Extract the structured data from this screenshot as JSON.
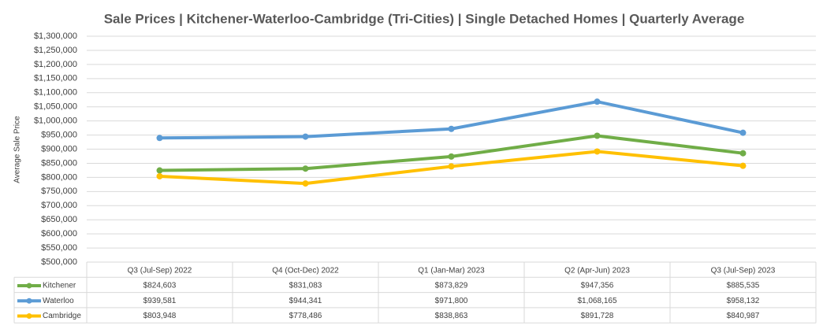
{
  "chart_data": {
    "type": "line",
    "title": "Sale Prices | Kitchener-Waterloo-Cambridge (Tri-Cities) | Single Detached Homes | Quarterly Average",
    "y_label": "Average Sale Price",
    "categories": [
      "Q3 (Jul-Sep) 2022",
      "Q4 (Oct-Dec) 2022",
      "Q1 (Jan-Mar) 2023",
      "Q2 (Apr-Jun) 2023",
      "Q3 (Jul-Sep) 2023"
    ],
    "series": [
      {
        "name": "Kitchener",
        "color": "#70ad47",
        "values": [
          824603,
          831083,
          873829,
          947356,
          885535
        ],
        "value_labels": [
          "$824,603",
          "$831,083",
          "$873,829",
          "$947,356",
          "$885,535"
        ]
      },
      {
        "name": "Waterloo",
        "color": "#5b9bd5",
        "values": [
          939581,
          944341,
          971800,
          1068165,
          958132
        ],
        "value_labels": [
          "$939,581",
          "$944,341",
          "$971,800",
          "$1,068,165",
          "$958,132"
        ]
      },
      {
        "name": "Cambridge",
        "color": "#ffc000",
        "values": [
          803948,
          778486,
          838863,
          891728,
          840987
        ],
        "value_labels": [
          "$803,948",
          "$778,486",
          "$838,863",
          "$891,728",
          "$840,987"
        ]
      }
    ],
    "ylim": [
      500000,
      1300000
    ],
    "yticks": [
      {
        "value": 500000,
        "label": "$500,000"
      },
      {
        "value": 550000,
        "label": "$550,000"
      },
      {
        "value": 600000,
        "label": "$600,000"
      },
      {
        "value": 650000,
        "label": "$650,000"
      },
      {
        "value": 700000,
        "label": "$700,000"
      },
      {
        "value": 750000,
        "label": "$750,000"
      },
      {
        "value": 800000,
        "label": "$800,000"
      },
      {
        "value": 850000,
        "label": "$850,000"
      },
      {
        "value": 900000,
        "label": "$900,000"
      },
      {
        "value": 950000,
        "label": "$950,000"
      },
      {
        "value": 1000000,
        "label": "$1,000,000"
      },
      {
        "value": 1050000,
        "label": "$1,050,000"
      },
      {
        "value": 1100000,
        "label": "$1,100,000"
      },
      {
        "value": 1150000,
        "label": "$1,150,000"
      },
      {
        "value": 1200000,
        "label": "$1,200,000"
      },
      {
        "value": 1250000,
        "label": "$1,250,000"
      },
      {
        "value": 1300000,
        "label": "$1,300,000"
      }
    ],
    "grid": true
  }
}
